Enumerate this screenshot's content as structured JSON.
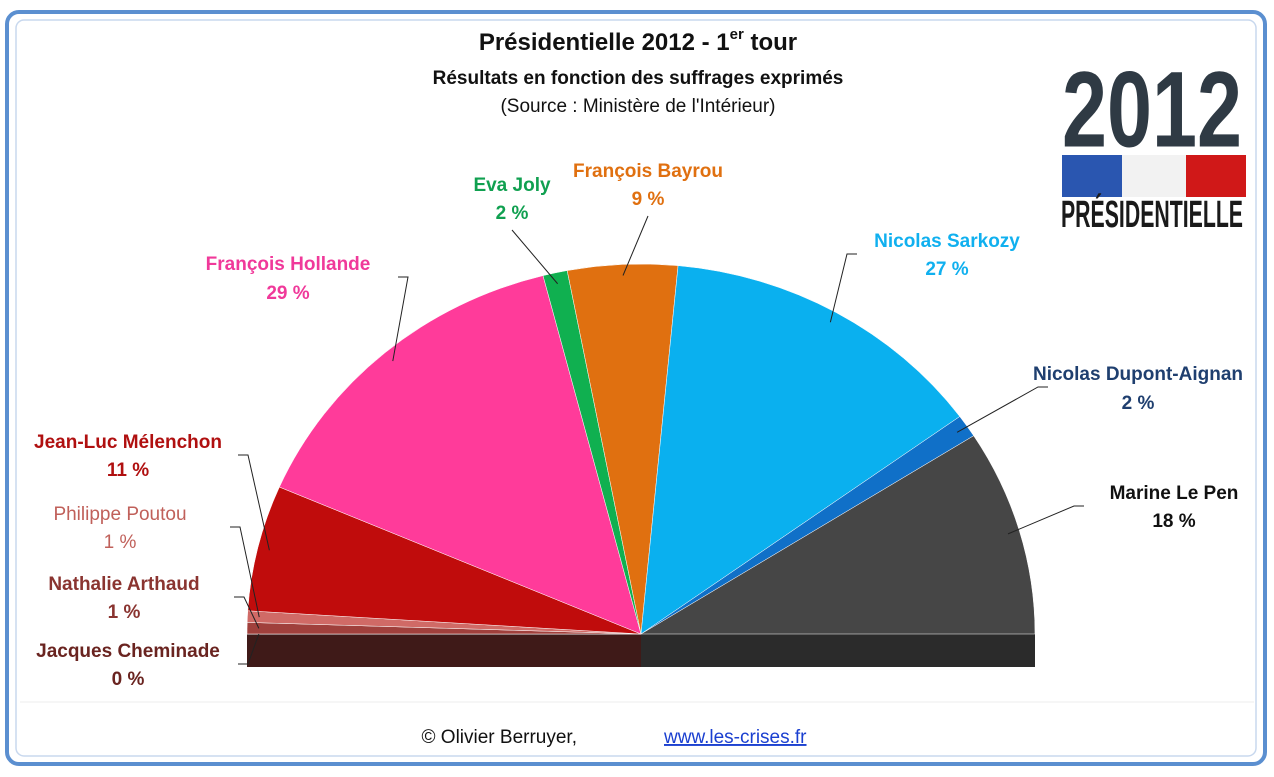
{
  "chart_data": {
    "type": "pie",
    "half": true,
    "title": [
      "Présidentielle  2012 - 1",
      "er",
      " tour"
    ],
    "subtitle": "Résultats en fonction des suffrages exprimés",
    "source": "(Source : Ministère de l'Intérieur)",
    "categories": [
      "Jacques Cheminade",
      "Nathalie Arthaud",
      "Philippe Poutou",
      "Jean-Luc Mélenchon",
      "François Hollande",
      "Eva Joly",
      "François Bayrou",
      "Nicolas Sarkozy",
      "Nicolas Dupont-Aignan",
      "Marine Le Pen"
    ],
    "values": [
      0,
      1,
      1,
      11,
      29,
      2,
      9,
      27,
      2,
      18
    ],
    "value_labels": [
      "0 %",
      "1 %",
      "1 %",
      "11 %",
      "29 %",
      "2 %",
      "9 %",
      "27 %",
      "2 %",
      "18 %"
    ],
    "colors": [
      "#5a1e1a",
      "#a0403c",
      "#d06a66",
      "#c00c0c",
      "#ff3b9a",
      "#10b050",
      "#e07010",
      "#0ab0ef",
      "#1070c8",
      "#464646"
    ],
    "label_colors": [
      "#6a2420",
      "#8a3430",
      "#c0605a",
      "#b01010",
      "#f0399a",
      "#10a050",
      "#e07010",
      "#10b0ef",
      "#1f3f6f",
      "#111111"
    ]
  },
  "logo": {
    "year": "2012",
    "text": "PRÉSIDENTIELLE"
  },
  "footer": {
    "credit": "© Olivier Berruyer,",
    "link": "www.les-crises.fr"
  }
}
